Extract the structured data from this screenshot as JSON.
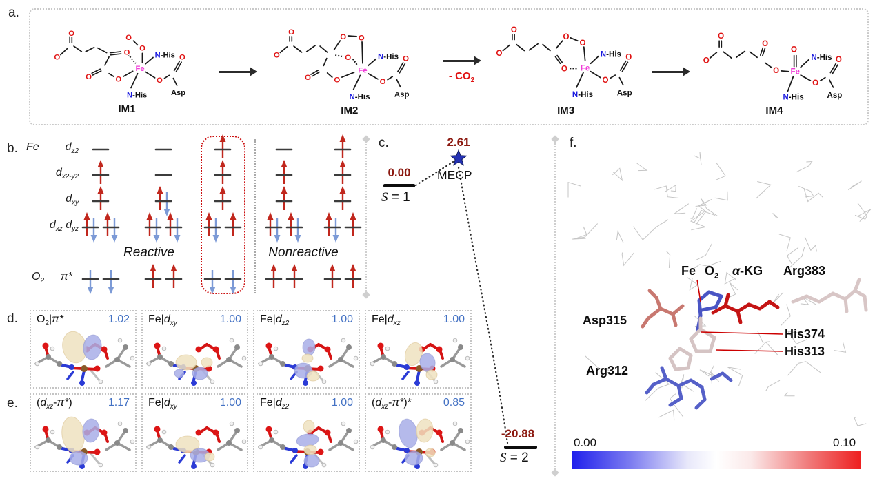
{
  "colors": {
    "spin_up": "#c1271d",
    "spin_down": "#7c9ad6",
    "bar": "#3c3c3c",
    "energy_text": "#8c1a11",
    "value_text": "#4472c4",
    "highlight_box": "#cc1111",
    "fe_atom": "#f03cd8",
    "o_atom": "#e01212",
    "n_atom": "#1a1ae0",
    "bond": "#1a1a1a",
    "star": "#2431b4",
    "co2_text": "#e01212",
    "colorbar_left": "#2020ec",
    "colorbar_right": "#ee2020"
  },
  "panel_a": {
    "label": "a.",
    "atoms": {
      "o": "O",
      "fe": "Fe",
      "n": "N",
      "his": "-His",
      "asp": "Asp",
      "minus": "−",
      "radical": "−·"
    },
    "intermediates": [
      "IM1",
      "IM2",
      "IM3",
      "IM4"
    ],
    "co2_label": {
      "text": "- CO",
      "sub": "2"
    }
  },
  "panel_b": {
    "label": "b.",
    "element_fe": "Fe",
    "element_o2": {
      "text": "O",
      "sub": "2"
    },
    "orbital_rows": [
      {
        "base": "d",
        "sub": "z2"
      },
      {
        "base": "d",
        "sub": "x2-y2"
      },
      {
        "base": "d",
        "sub": "xy"
      },
      {
        "base": "d",
        "sub": "xz",
        "base2": "d",
        "sub2": "yz"
      },
      {
        "base": "π*"
      }
    ],
    "reactive_label": "Reactive",
    "nonreactive_label": "Nonreactive",
    "configurations": [
      {
        "group": "reactive",
        "highlighted": false,
        "dz2": "empty",
        "dx2y2": "up",
        "dxy": "up",
        "dxz": "pair",
        "dyz": "pair",
        "pi_a": "down",
        "pi_b": "down"
      },
      {
        "group": "reactive",
        "highlighted": false,
        "dz2": "empty",
        "dx2y2": "empty",
        "dxy": "pair",
        "dxz": "pair",
        "dyz": "pair",
        "pi_a": "up",
        "pi_b": "up"
      },
      {
        "group": "reactive",
        "highlighted": true,
        "dz2": "up",
        "dx2y2": "up",
        "dxy": "up",
        "dxz": "pair",
        "dyz": "up",
        "pi_a": "down",
        "pi_b": "down"
      },
      {
        "group": "nonreactive",
        "highlighted": false,
        "dz2": "empty",
        "dx2y2": "up",
        "dxy": "up",
        "dxz": "pair",
        "dyz": "pair",
        "pi_a": "up",
        "pi_b": "up"
      },
      {
        "group": "nonreactive",
        "highlighted": false,
        "dz2": "up",
        "dx2y2": "up",
        "dxy": "up",
        "dxz": "pair",
        "dyz": "up",
        "pi_a": "up",
        "pi_b": "up"
      }
    ]
  },
  "panel_c": {
    "label": "c.",
    "singlet": {
      "energy": "0.00",
      "state": "S",
      "state_eq": " = 1"
    },
    "mecp": {
      "energy": "2.61",
      "name": "MECP"
    },
    "quintet": {
      "energy": "-20.88",
      "state": "S",
      "state_eq": " = 2"
    }
  },
  "panel_d": {
    "label": "d.",
    "items": [
      {
        "tokens": [
          {
            "t": "O"
          },
          {
            "t": "2",
            "sub": true
          },
          {
            "t": "|"
          },
          {
            "t": "π*",
            "i": true
          }
        ],
        "value": "1.02",
        "variant": "d0"
      },
      {
        "tokens": [
          {
            "t": "Fe|"
          },
          {
            "t": "d",
            "i": true
          },
          {
            "t": "xy",
            "sub": true,
            "i": true
          }
        ],
        "value": "1.00",
        "variant": "d1"
      },
      {
        "tokens": [
          {
            "t": "Fe|"
          },
          {
            "t": "d",
            "i": true
          },
          {
            "t": "z2",
            "sub": true,
            "i": true
          }
        ],
        "value": "1.00",
        "variant": "d2"
      },
      {
        "tokens": [
          {
            "t": "Fe|"
          },
          {
            "t": "d",
            "i": true
          },
          {
            "t": "xz",
            "sub": true,
            "i": true
          }
        ],
        "value": "1.00",
        "variant": "d3"
      }
    ]
  },
  "panel_e": {
    "label": "e.",
    "items": [
      {
        "tokens": [
          {
            "t": "("
          },
          {
            "t": "d",
            "i": true
          },
          {
            "t": "xz",
            "sub": true,
            "i": true
          },
          {
            "t": "-"
          },
          {
            "t": "π*",
            "i": true
          },
          {
            "t": ")"
          }
        ],
        "value": "1.17",
        "variant": "e0"
      },
      {
        "tokens": [
          {
            "t": "Fe|"
          },
          {
            "t": "d",
            "i": true
          },
          {
            "t": "xy",
            "sub": true,
            "i": true
          }
        ],
        "value": "1.00",
        "variant": "e1"
      },
      {
        "tokens": [
          {
            "t": "Fe|"
          },
          {
            "t": "d",
            "i": true
          },
          {
            "t": "z2",
            "sub": true,
            "i": true
          }
        ],
        "value": "1.00",
        "variant": "e2"
      },
      {
        "tokens": [
          {
            "t": "("
          },
          {
            "t": "d",
            "i": true
          },
          {
            "t": "xz",
            "sub": true,
            "i": true
          },
          {
            "t": "-"
          },
          {
            "t": "π*",
            "i": true
          },
          {
            "t": ")*"
          }
        ],
        "value": "0.85",
        "variant": "e3"
      }
    ]
  },
  "panel_f": {
    "label": "f.",
    "site_labels": {
      "fe": "Fe",
      "o2": {
        "text": "O",
        "sub": "2"
      },
      "akg": {
        "alpha": "α",
        "rest": "-KG"
      },
      "arg383": "Arg383",
      "asp315": "Asp315",
      "his374": "His374",
      "his313": "His313",
      "arg312": "Arg312"
    },
    "colorbar": {
      "min": "0.00",
      "max": "0.10"
    }
  }
}
